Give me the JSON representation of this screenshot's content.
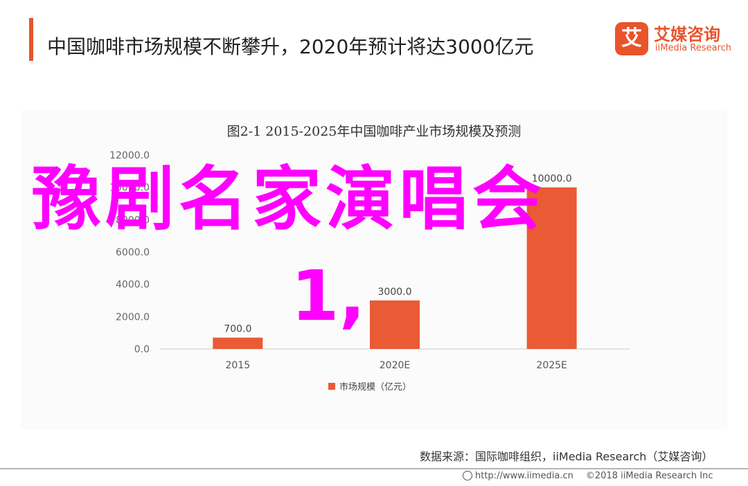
{
  "header": {
    "title": "中国咖啡市场规模不断攀升，2020年预计将达3000亿元"
  },
  "logo": {
    "mark": "艾",
    "name_cn": "艾媒咨询",
    "name_en": "iiMedia Research"
  },
  "overlay": {
    "line1": "豫剧名家演唱会",
    "line2": "1,"
  },
  "chart_data": {
    "type": "bar",
    "title": "图2-1 2015-2025年中国咖啡产业市场规模及预测",
    "categories": [
      "2015",
      "2020E",
      "2025E"
    ],
    "series": [
      {
        "name": "市场规模（亿元）",
        "values": [
          700.0,
          3000.0,
          10000.0
        ]
      }
    ],
    "data_labels": [
      "700.0",
      "3000.0",
      "10000.0"
    ],
    "ylim": [
      0,
      12000
    ],
    "yticks": [
      0,
      2000,
      4000,
      6000,
      8000,
      10000,
      12000
    ],
    "ytick_labels": [
      "0.0",
      "2000.0",
      "4000.0",
      "6000.0",
      "8000.0",
      "10000.0",
      "12000.0"
    ],
    "xlabel": "",
    "ylabel": "",
    "legend_position": "bottom",
    "grid": false,
    "bar_color": "#ea5a35"
  },
  "source": {
    "text": "数据来源：国际咖啡组织，iiMedia Research（艾媒咨询）"
  },
  "footer": {
    "url": "http://www.iimedia.cn",
    "copyright": "©2018  iiMedia Research  Inc"
  },
  "colors": {
    "accent": "#e8542c",
    "overlay": "#ff00ff"
  }
}
